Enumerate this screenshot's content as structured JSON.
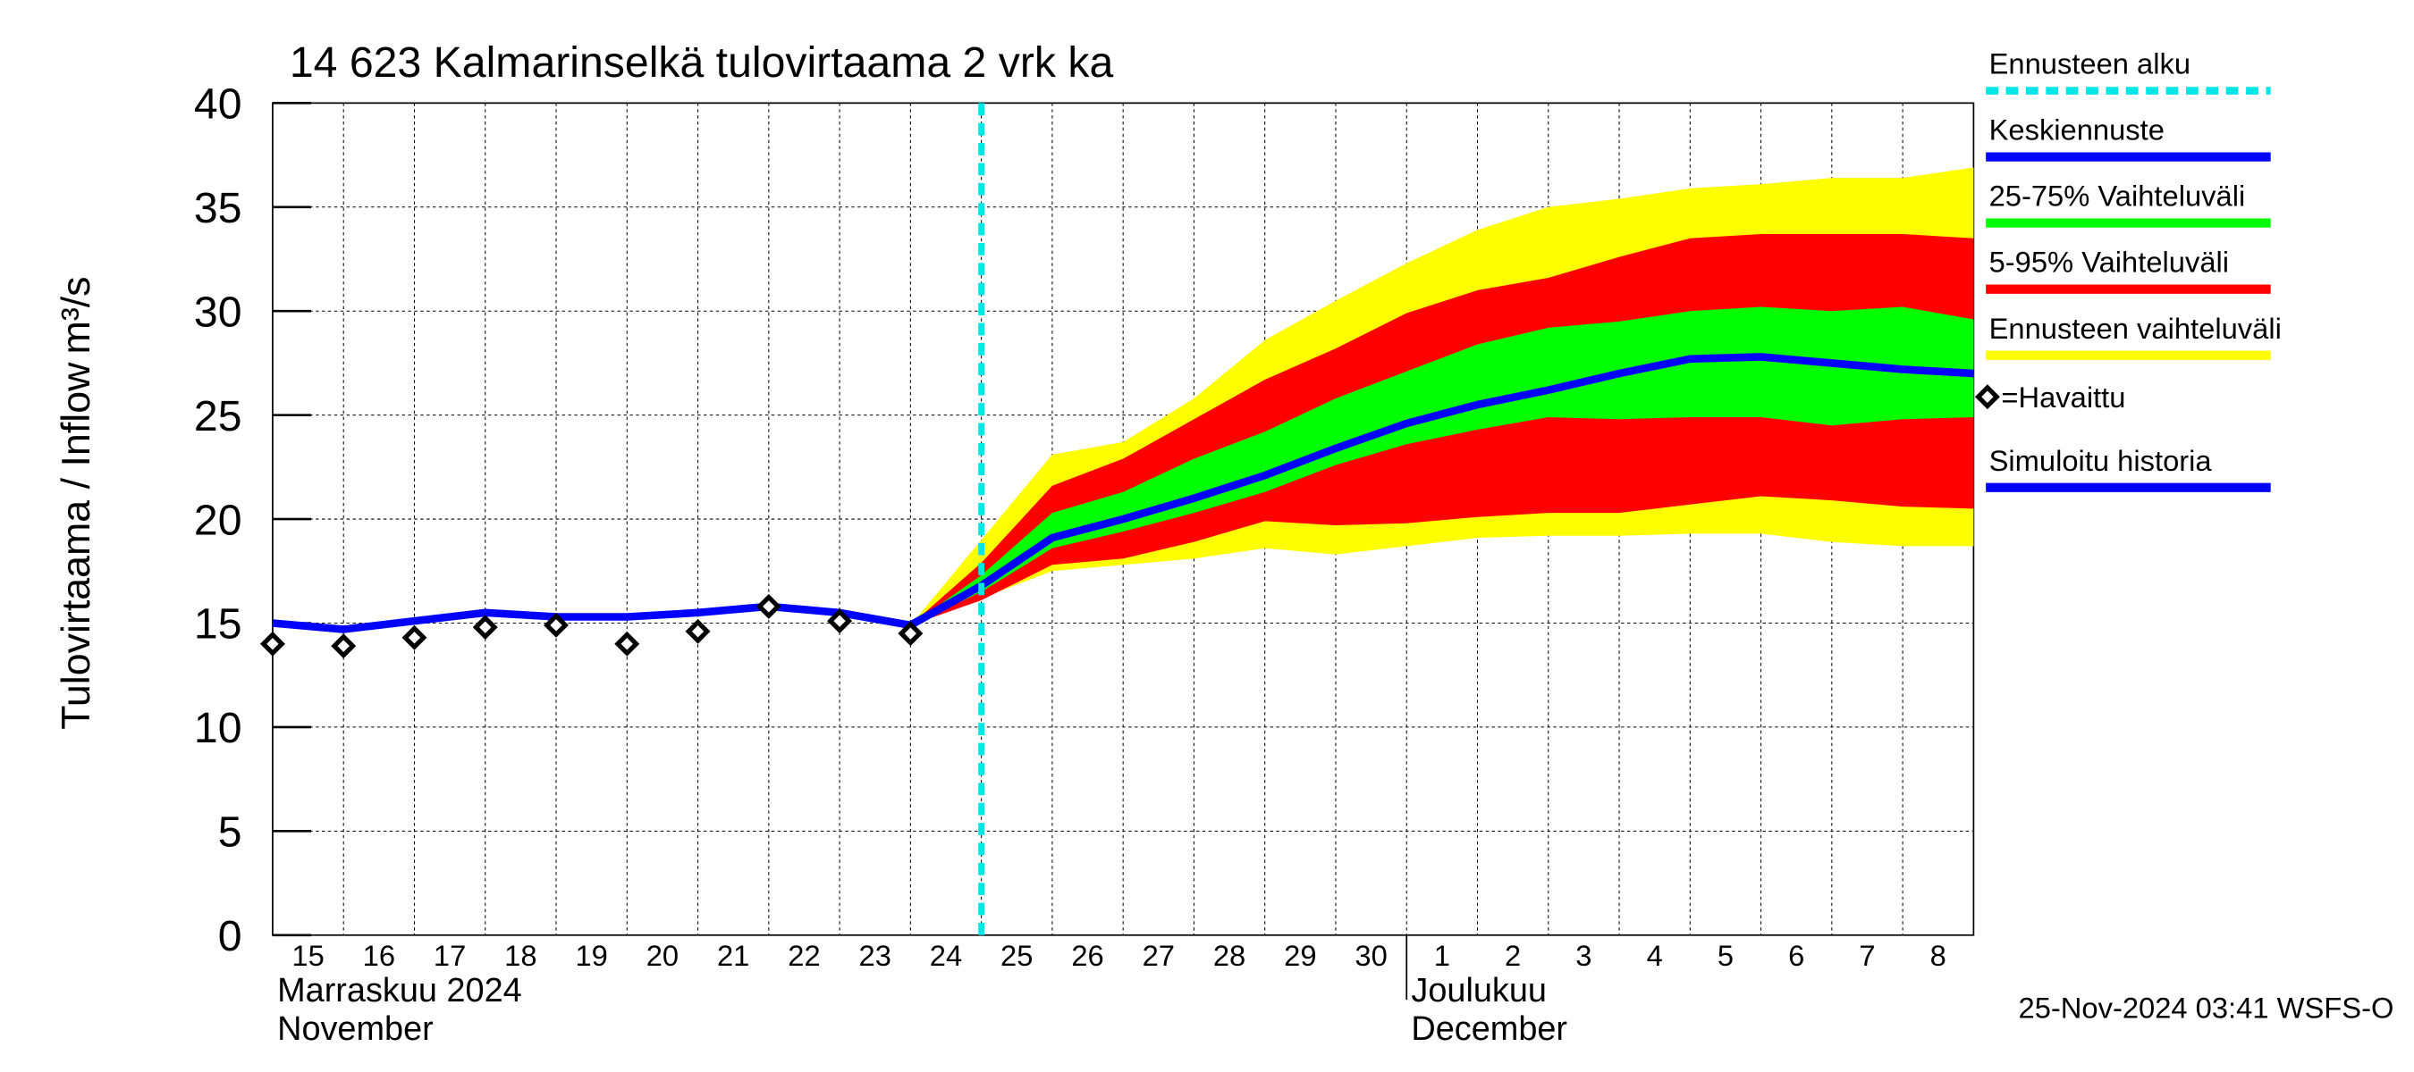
{
  "chart_data": {
    "type": "line",
    "title": "14 623 Kalmarinselkä tulovirtaama 2 vrk ka",
    "ylabel": "Tulovirtaama / Inflow",
    "yunit": "m³/s",
    "xlim": [
      0,
      24
    ],
    "ylim": [
      0,
      40
    ],
    "yticks": [
      0,
      5,
      10,
      15,
      20,
      25,
      30,
      35,
      40
    ],
    "xticks": [
      {
        "value": 0.5,
        "label": "15"
      },
      {
        "value": 1.5,
        "label": "16"
      },
      {
        "value": 2.5,
        "label": "17"
      },
      {
        "value": 3.5,
        "label": "18"
      },
      {
        "value": 4.5,
        "label": "19"
      },
      {
        "value": 5.5,
        "label": "20"
      },
      {
        "value": 6.5,
        "label": "21"
      },
      {
        "value": 7.5,
        "label": "22"
      },
      {
        "value": 8.5,
        "label": "23"
      },
      {
        "value": 9.5,
        "label": "24"
      },
      {
        "value": 10.5,
        "label": "25"
      },
      {
        "value": 11.5,
        "label": "26"
      },
      {
        "value": 12.5,
        "label": "27"
      },
      {
        "value": 13.5,
        "label": "28"
      },
      {
        "value": 14.5,
        "label": "29"
      },
      {
        "value": 15.5,
        "label": "30"
      },
      {
        "value": 16.5,
        "label": "1"
      },
      {
        "value": 17.5,
        "label": "2"
      },
      {
        "value": 18.5,
        "label": "3"
      },
      {
        "value": 19.5,
        "label": "4"
      },
      {
        "value": 20.5,
        "label": "5"
      },
      {
        "value": 21.5,
        "label": "6"
      },
      {
        "value": 22.5,
        "label": "7"
      },
      {
        "value": 23.5,
        "label": "8"
      }
    ],
    "months": [
      {
        "value": 0,
        "label": "Marraskuu 2024",
        "label2": "November"
      },
      {
        "value": 16,
        "label": "Joulukuu",
        "label2": "December"
      }
    ],
    "grid": true,
    "forecast_start": {
      "name": "Ennusteen alku",
      "value": 10,
      "color": "#00e5e5"
    },
    "series": [
      {
        "name": "Keskiennuste",
        "kind": "line",
        "color": "#0000ff",
        "x": [
          9,
          10,
          11,
          12,
          13,
          14,
          15,
          16,
          17,
          18,
          19,
          20,
          21,
          22,
          23,
          24
        ],
        "values": [
          14.9,
          16.8,
          19.1,
          20.0,
          21.0,
          22.1,
          23.4,
          24.6,
          25.5,
          26.2,
          27.0,
          27.7,
          27.8,
          27.5,
          27.2,
          27.0
        ]
      },
      {
        "name": "25-75% Vaihteluväli",
        "kind": "band",
        "color": "#00ff00",
        "x": [
          9,
          10,
          11,
          12,
          13,
          14,
          15,
          16,
          17,
          18,
          19,
          20,
          21,
          22,
          23,
          24
        ],
        "lower": [
          14.9,
          16.5,
          18.6,
          19.4,
          20.3,
          21.3,
          22.6,
          23.6,
          24.3,
          24.9,
          24.8,
          24.9,
          24.9,
          24.5,
          24.8,
          24.9
        ],
        "upper": [
          14.9,
          17.3,
          20.3,
          21.3,
          22.9,
          24.2,
          25.8,
          27.1,
          28.4,
          29.2,
          29.5,
          30.0,
          30.2,
          30.0,
          30.2,
          29.6
        ]
      },
      {
        "name": "5-95% Vaihteluväli",
        "kind": "band",
        "color": "#ff0000",
        "x": [
          9,
          10,
          11,
          12,
          13,
          14,
          15,
          16,
          17,
          18,
          19,
          20,
          21,
          22,
          23,
          24
        ],
        "lower": [
          14.9,
          16.1,
          17.8,
          18.1,
          18.9,
          19.9,
          19.7,
          19.8,
          20.1,
          20.3,
          20.3,
          20.7,
          21.1,
          20.9,
          20.6,
          20.5
        ],
        "upper": [
          14.9,
          17.9,
          21.6,
          22.9,
          24.8,
          26.7,
          28.2,
          29.9,
          31.0,
          31.6,
          32.6,
          33.5,
          33.7,
          33.7,
          33.7,
          33.5
        ]
      },
      {
        "name": "Ennusteen vaihteluväli",
        "kind": "band",
        "color": "#ffff00",
        "x": [
          9,
          10,
          11,
          12,
          13,
          14,
          15,
          16,
          17,
          18,
          19,
          20,
          21,
          22,
          23,
          24
        ],
        "lower": [
          14.9,
          16.2,
          17.5,
          17.8,
          18.1,
          18.6,
          18.3,
          18.7,
          19.1,
          19.2,
          19.2,
          19.3,
          19.3,
          18.9,
          18.7,
          18.7
        ],
        "upper": [
          14.9,
          19.0,
          23.1,
          23.7,
          25.8,
          28.6,
          30.5,
          32.3,
          33.9,
          35.0,
          35.4,
          35.9,
          36.1,
          36.4,
          36.4,
          36.9
        ]
      },
      {
        "name": "=Havaittu",
        "kind": "marker",
        "color": "#000000",
        "x": [
          0,
          1,
          2,
          3,
          4,
          5,
          6,
          7,
          8,
          9
        ],
        "values": [
          14.0,
          13.9,
          14.3,
          14.8,
          14.9,
          14.0,
          14.6,
          15.8,
          15.1,
          14.5
        ]
      },
      {
        "name": "Simuloitu historia",
        "kind": "line",
        "color": "#0000ff",
        "x": [
          0,
          1,
          2,
          3,
          4,
          5,
          6,
          7,
          8,
          9
        ],
        "values": [
          15.0,
          14.7,
          15.1,
          15.5,
          15.3,
          15.3,
          15.5,
          15.8,
          15.5,
          14.9
        ]
      }
    ],
    "timestamp": "25-Nov-2024 03:41 WSFS-O"
  }
}
